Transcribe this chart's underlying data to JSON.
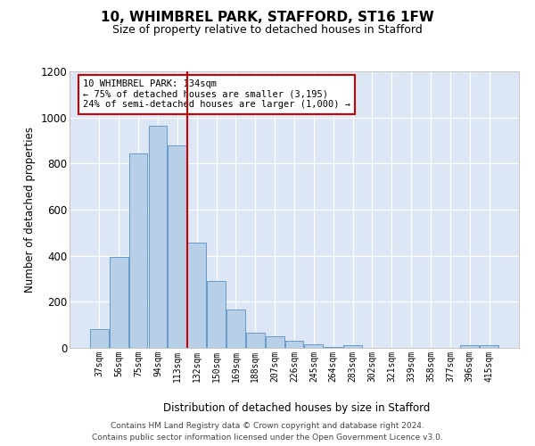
{
  "title": "10, WHIMBREL PARK, STAFFORD, ST16 1FW",
  "subtitle": "Size of property relative to detached houses in Stafford",
  "xlabel": "Distribution of detached houses by size in Stafford",
  "ylabel": "Number of detached properties",
  "categories": [
    "37sqm",
    "56sqm",
    "75sqm",
    "94sqm",
    "113sqm",
    "132sqm",
    "150sqm",
    "169sqm",
    "188sqm",
    "207sqm",
    "226sqm",
    "245sqm",
    "264sqm",
    "283sqm",
    "302sqm",
    "321sqm",
    "339sqm",
    "358sqm",
    "377sqm",
    "396sqm",
    "415sqm"
  ],
  "bar_color": "#b8cfe8",
  "bar_edge_color": "#6699cc",
  "background_color": "#dce6f5",
  "vline_color": "#cc0000",
  "annotation_line1": "10 WHIMBREL PARK: 134sqm",
  "annotation_line2": "← 75% of detached houses are smaller (3,195)",
  "annotation_line3": "24% of semi-detached houses are larger (1,000) →",
  "annotation_box_color": "#ffffff",
  "annotation_box_edge": "#cc0000",
  "ylim": [
    0,
    1200
  ],
  "yticks": [
    0,
    200,
    400,
    600,
    800,
    1000,
    1200
  ],
  "footer_line1": "Contains HM Land Registry data © Crown copyright and database right 2024.",
  "footer_line2": "Contains public sector information licensed under the Open Government Licence v3.0.",
  "all_bar_values": [
    80,
    395,
    845,
    965,
    880,
    455,
    290,
    165,
    65,
    50,
    30,
    15,
    5,
    10,
    0,
    0,
    0,
    0,
    0,
    10,
    10
  ]
}
